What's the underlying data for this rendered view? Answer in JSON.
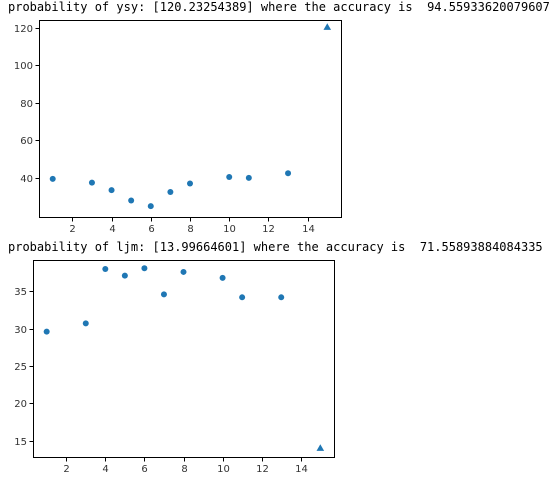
{
  "outputs": [
    {
      "prefix": "probability of ",
      "name": "ysy",
      "sep": ": ",
      "prediction": "[120.23254389]",
      "mid": " where the accuracy is  ",
      "accuracy": "94.55933620079607"
    },
    {
      "prefix": "probability of ",
      "name": "ljm",
      "sep": ": ",
      "prediction": "[13.99664601]",
      "mid": " where the accuracy is  ",
      "accuracy": "71.55893884084335"
    }
  ],
  "colors": {
    "marker": "#1f77b4"
  },
  "chart_data": [
    {
      "type": "scatter",
      "title": "",
      "xlabel": "",
      "ylabel": "",
      "xlim": [
        0.3,
        15.7
      ],
      "ylim": [
        19.2,
        124
      ],
      "xticks": [
        2,
        4,
        6,
        8,
        10,
        12,
        14
      ],
      "yticks": [
        40,
        60,
        80,
        100,
        120
      ],
      "grid": false,
      "series": [
        {
          "marker": "circle",
          "x": [
            1,
            3,
            4,
            5,
            6,
            7,
            8,
            10,
            11,
            13
          ],
          "y": [
            39.5,
            37.5,
            33.5,
            28,
            25,
            32.5,
            37,
            40.5,
            40,
            42.5
          ]
        },
        {
          "marker": "triangle",
          "x": [
            15
          ],
          "y": [
            120.23254389
          ]
        }
      ]
    },
    {
      "type": "scatter",
      "title": "",
      "xlabel": "",
      "ylabel": "",
      "xlim": [
        0.3,
        15.7
      ],
      "ylim": [
        12.8,
        39.2
      ],
      "xticks": [
        2,
        4,
        6,
        8,
        10,
        12,
        14
      ],
      "yticks": [
        15,
        20,
        25,
        30,
        35
      ],
      "grid": false,
      "series": [
        {
          "marker": "circle",
          "x": [
            1,
            3,
            4,
            5,
            6,
            7,
            8,
            10,
            11,
            13
          ],
          "y": [
            29.6,
            30.7,
            38,
            37.1,
            38.1,
            34.6,
            37.6,
            36.8,
            34.2,
            34.2
          ]
        },
        {
          "marker": "triangle",
          "x": [
            15
          ],
          "y": [
            13.99664601
          ]
        }
      ]
    }
  ]
}
